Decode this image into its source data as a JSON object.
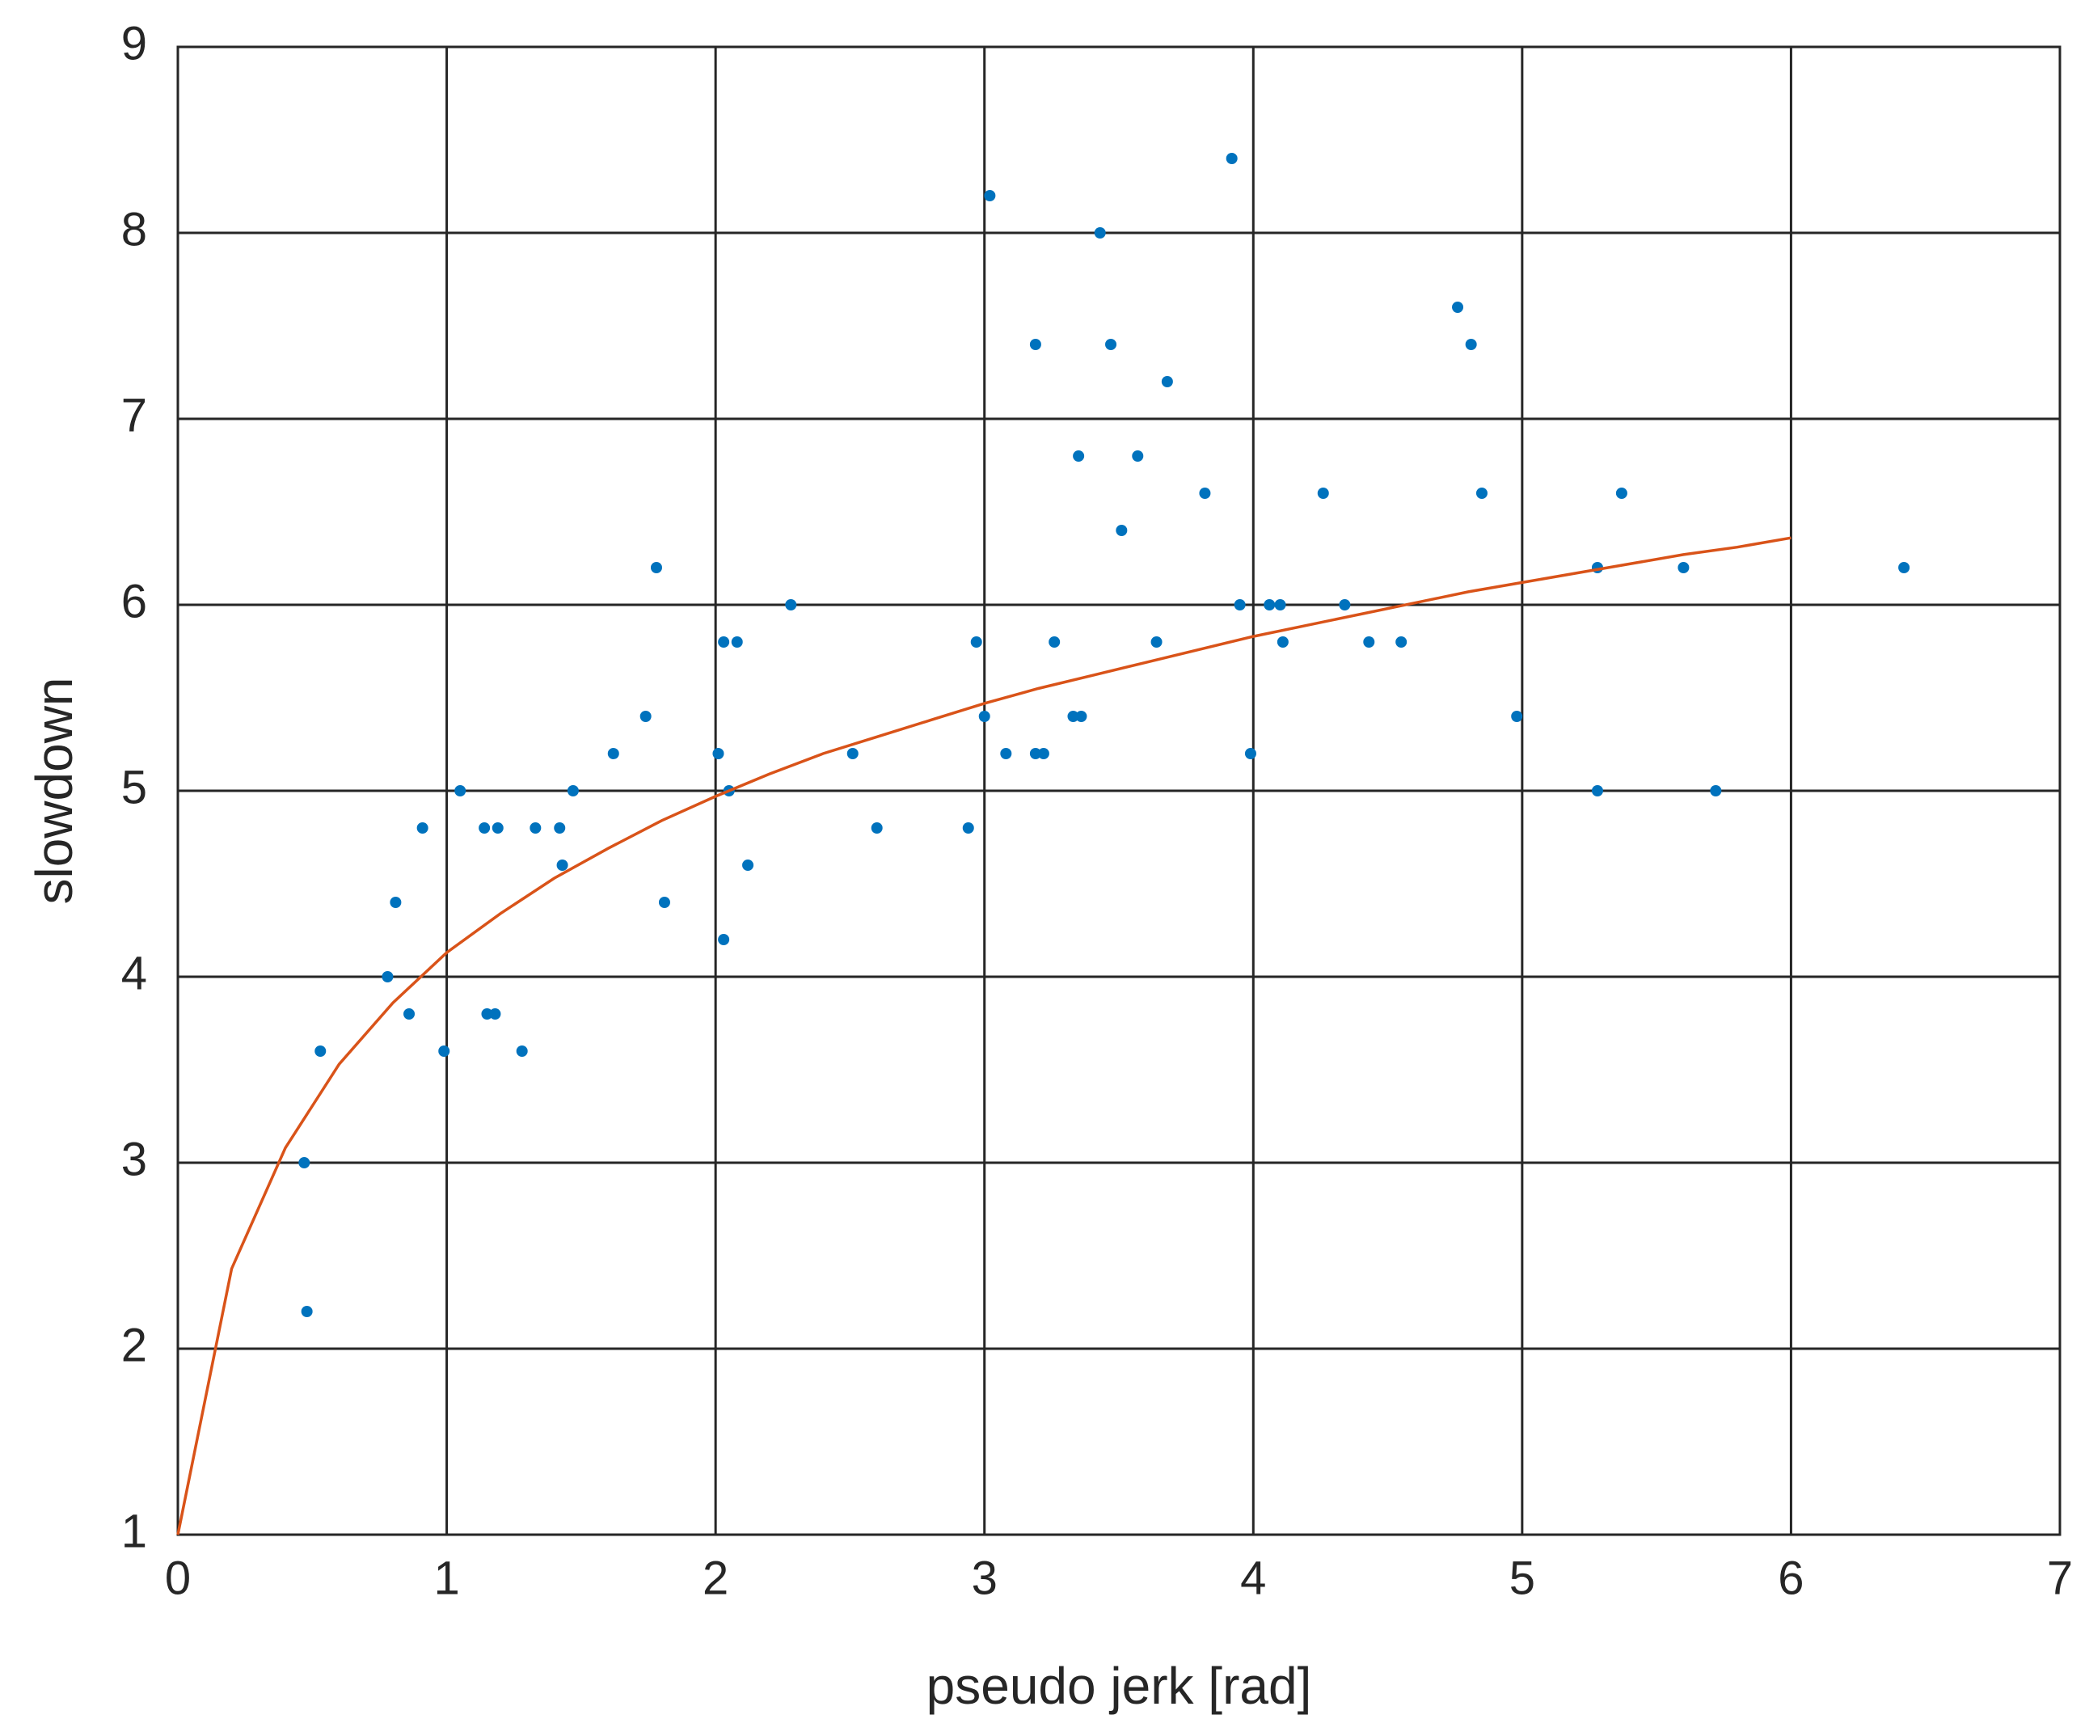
{
  "chart_data": {
    "type": "scatter",
    "xlabel": "pseudo jerk [rad]",
    "ylabel": "slowdown",
    "xlim": [
      0,
      7
    ],
    "ylim": [
      1,
      9
    ],
    "xticks": [
      0,
      1,
      2,
      3,
      4,
      5,
      6,
      7
    ],
    "yticks": [
      1,
      2,
      3,
      4,
      5,
      6,
      7,
      8,
      9
    ],
    "grid": true,
    "series": [
      {
        "type": "scatter",
        "color": "#0072bd",
        "x": [
          0.48,
          0.47,
          0.53,
          0.78,
          0.81,
          0.86,
          0.91,
          0.99,
          1.05,
          1.14,
          1.15,
          1.18,
          1.19,
          1.28,
          1.33,
          1.42,
          1.43,
          1.47,
          1.62,
          1.74,
          1.78,
          1.81,
          2.01,
          2.03,
          2.03,
          2.05,
          2.08,
          2.12,
          2.28,
          2.51,
          2.6,
          2.94,
          2.97,
          3.0,
          3.02,
          3.08,
          3.19,
          3.19,
          3.22,
          3.26,
          3.33,
          3.35,
          3.36,
          3.43,
          3.47,
          3.51,
          3.57,
          3.64,
          3.68,
          3.82,
          3.92,
          3.95,
          3.99,
          4.06,
          4.1,
          4.11,
          4.26,
          4.34,
          4.43,
          4.55,
          4.76,
          4.81,
          4.85,
          4.98,
          5.28,
          5.28,
          5.37,
          5.6,
          5.72,
          6.42
        ],
        "values": [
          2.2,
          3.0,
          3.6,
          4.0,
          4.4,
          3.8,
          4.8,
          3.6,
          5.0,
          4.8,
          3.8,
          3.8,
          4.8,
          3.6,
          4.8,
          4.8,
          4.6,
          5.0,
          5.2,
          5.4,
          6.2,
          4.4,
          5.2,
          5.8,
          4.2,
          5.0,
          5.8,
          4.6,
          6.0,
          5.2,
          4.8,
          4.8,
          5.8,
          5.4,
          8.2,
          5.2,
          7.4,
          5.2,
          5.2,
          5.8,
          5.4,
          6.8,
          5.4,
          8.0,
          7.4,
          6.4,
          6.8,
          5.8,
          7.2,
          6.6,
          8.4,
          6.0,
          5.2,
          6.0,
          6.0,
          5.8,
          6.6,
          6.0,
          5.8,
          5.8,
          7.6,
          7.4,
          6.6,
          5.4,
          5.0,
          6.2,
          6.6,
          6.2,
          5.0,
          6.2
        ]
      },
      {
        "type": "line",
        "color": "#d95319",
        "x": [
          0,
          0.2,
          0.4,
          0.6,
          0.8,
          1.0,
          1.2,
          1.4,
          1.6,
          1.8,
          2.0,
          2.2,
          2.4,
          2.6,
          2.8,
          3.0,
          3.2,
          3.4,
          3.6,
          3.8,
          4.0,
          4.2,
          4.4,
          4.6,
          4.8,
          5.0,
          5.2,
          5.4,
          5.6,
          5.8,
          6.0
        ],
        "values": [
          1.0,
          2.43,
          3.08,
          3.53,
          3.86,
          4.13,
          4.34,
          4.53,
          4.69,
          4.84,
          4.97,
          5.09,
          5.2,
          5.29,
          5.38,
          5.47,
          5.55,
          5.62,
          5.69,
          5.76,
          5.83,
          5.89,
          5.95,
          6.01,
          6.07,
          6.12,
          6.17,
          6.22,
          6.27,
          6.31,
          6.36
        ]
      }
    ]
  }
}
